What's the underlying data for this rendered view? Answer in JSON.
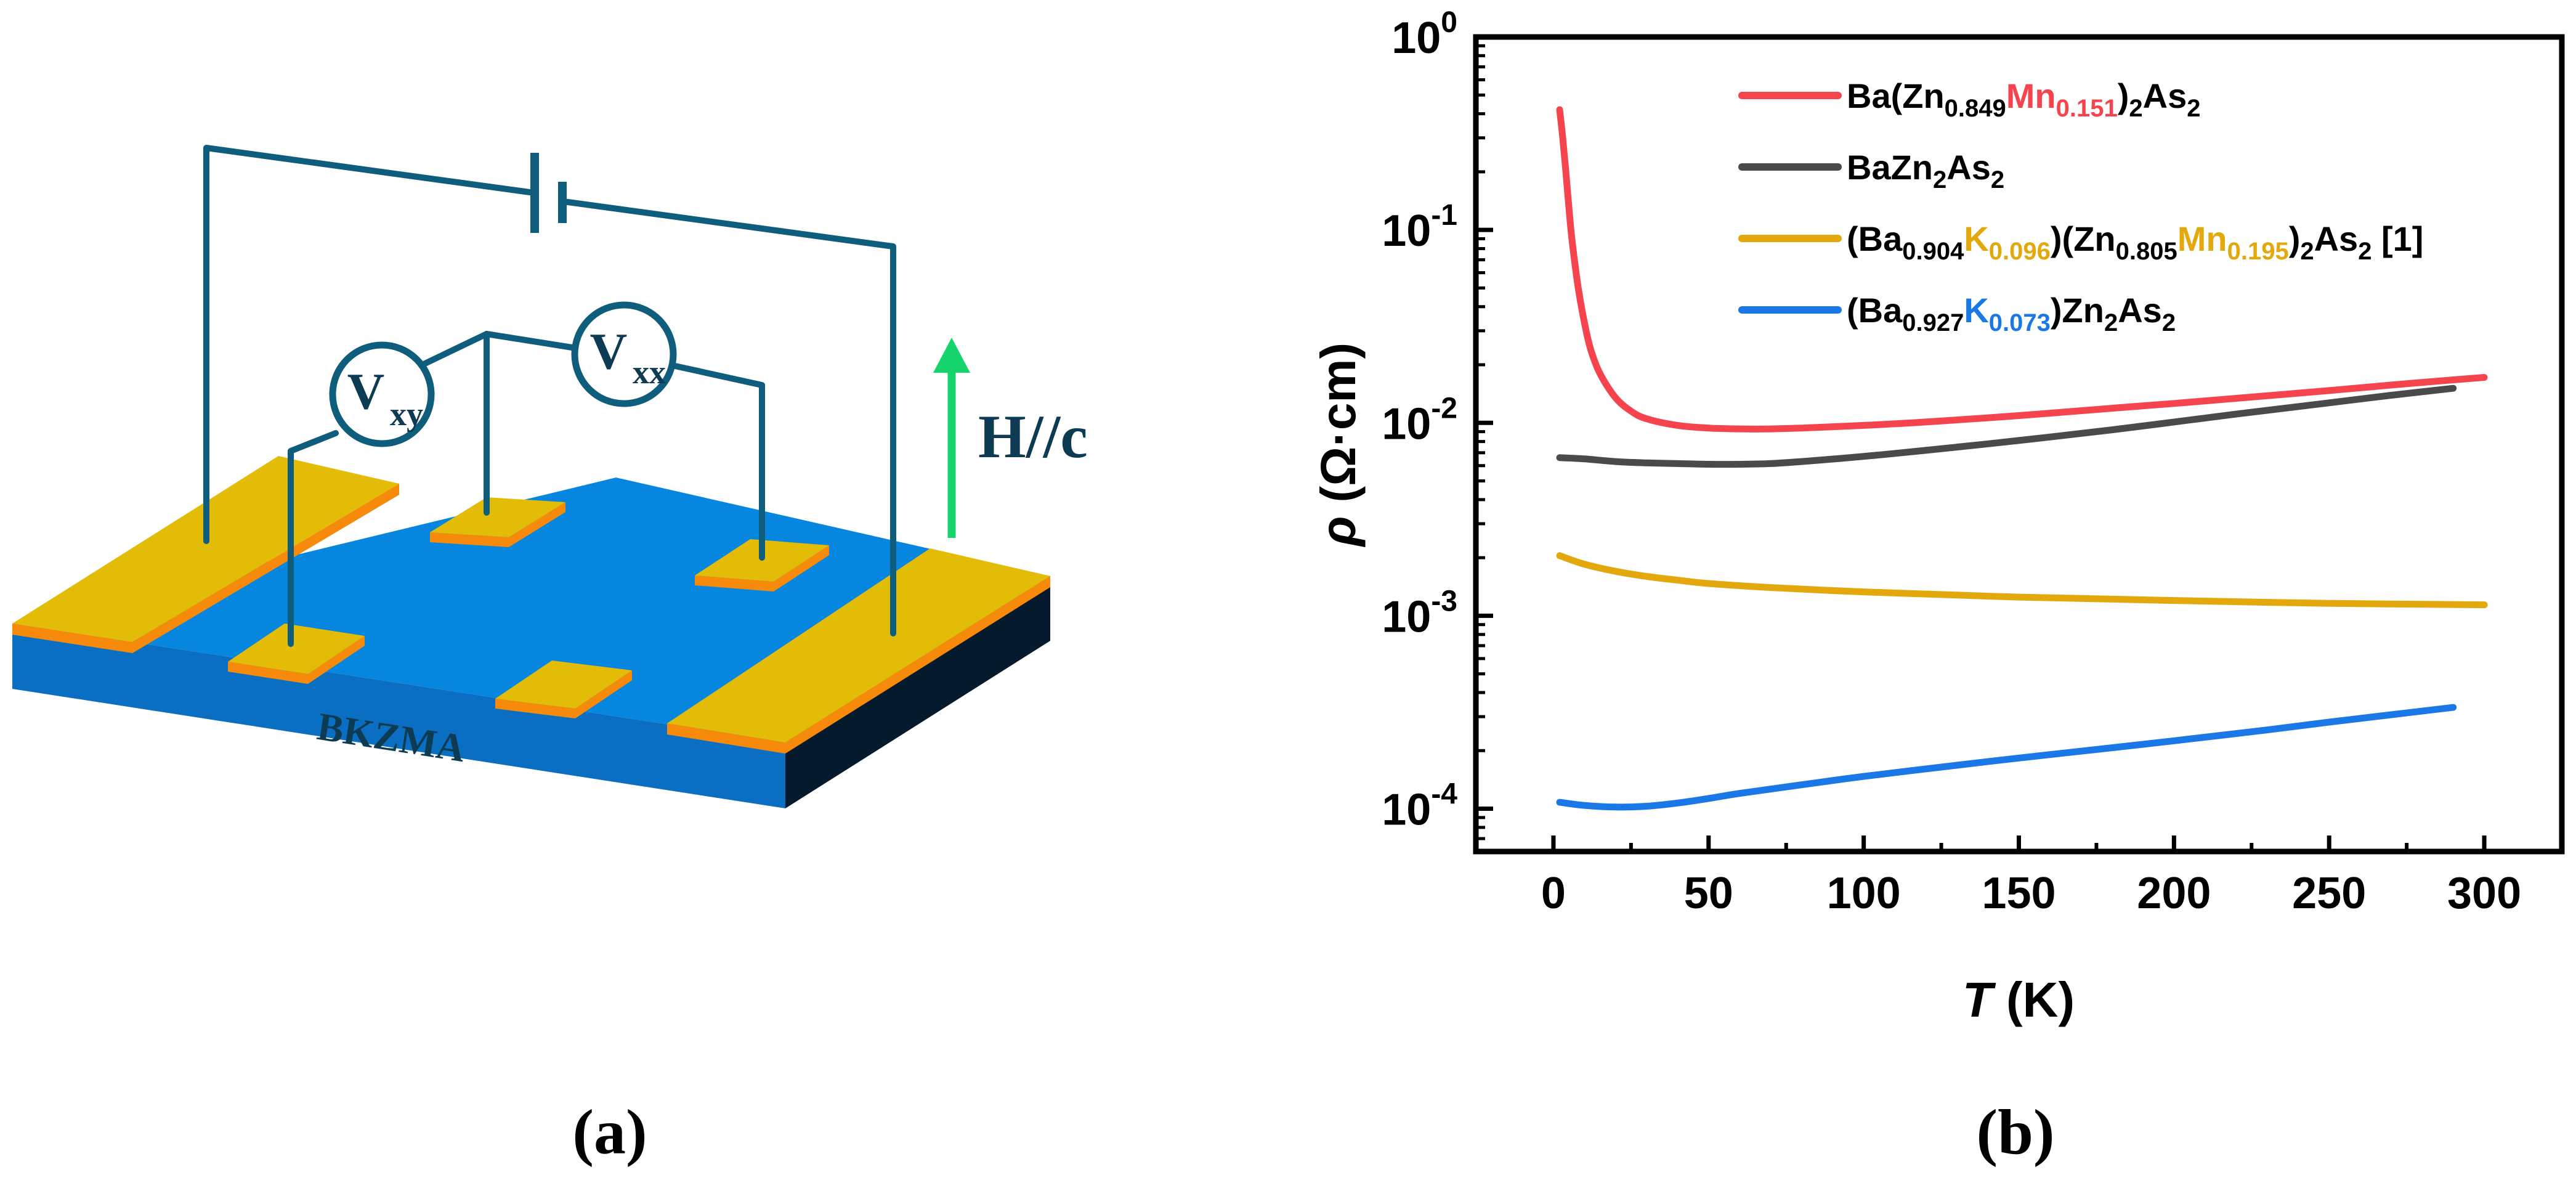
{
  "panel_a": {
    "label": "(a)",
    "sample_label": "BKZMA",
    "field_label": "H//c",
    "vxy": {
      "main": "V",
      "sub": "xy"
    },
    "vxx": {
      "main": "V",
      "sub": "xx"
    },
    "colors": {
      "substrate_top": "#0686de",
      "substrate_front": "#0a6fc2",
      "substrate_side": "#061a2d",
      "contact_top": "#e3bc08",
      "contact_edge": "#f7890b",
      "wire": "#0f5d7d",
      "arrow": "#14d46b",
      "sample_text": "#ffffff"
    }
  },
  "panel_b": {
    "label": "(b)"
  },
  "chart_data": {
    "type": "line",
    "yscale": "log",
    "xlim": [
      -25,
      325
    ],
    "ylim": [
      6e-05,
      1
    ],
    "xticks": [
      0,
      50,
      100,
      150,
      200,
      250,
      300
    ],
    "xtick_labels": [
      "0",
      "50",
      "100",
      "150",
      "200",
      "250",
      "300"
    ],
    "yticks": [
      {
        "value": 1,
        "base": "10",
        "exp": "0"
      },
      {
        "value": 0.1,
        "base": "10",
        "exp": "-1"
      },
      {
        "value": 0.01,
        "base": "10",
        "exp": "-2"
      },
      {
        "value": 0.001,
        "base": "10",
        "exp": "-3"
      },
      {
        "value": 0.0001,
        "base": "10",
        "exp": "-4"
      }
    ],
    "xlabel": {
      "sym": "T",
      "unit": " (K)"
    },
    "ylabel": {
      "sym": "ρ",
      "unit": " (Ω·cm)"
    },
    "series": [
      {
        "name": "Ba(Zn0.849Mn0.151)2As2",
        "color": "#f5444e",
        "legend_parts": [
          {
            "t": "Ba(Zn"
          },
          {
            "t": "0.849",
            "s": "sub"
          },
          {
            "t": "Mn",
            "c": "#f5444e"
          },
          {
            "t": "0.151",
            "s": "sub",
            "c": "#f5444e"
          },
          {
            "t": ")"
          },
          {
            "t": "2",
            "s": "sub"
          },
          {
            "t": "As"
          },
          {
            "t": "2",
            "s": "sub"
          }
        ],
        "x": [
          2,
          3,
          4,
          5,
          6,
          8,
          10,
          12,
          15,
          20,
          25,
          30,
          40,
          50,
          60,
          70,
          80,
          100,
          120,
          150,
          180,
          200,
          220,
          250,
          270,
          290,
          300
        ],
        "y": [
          0.42,
          0.3,
          0.2,
          0.13,
          0.088,
          0.05,
          0.033,
          0.024,
          0.018,
          0.0135,
          0.0115,
          0.0105,
          0.0097,
          0.0094,
          0.0093,
          0.0093,
          0.0094,
          0.0097,
          0.0101,
          0.0109,
          0.0119,
          0.0126,
          0.0134,
          0.0147,
          0.0157,
          0.0167,
          0.0172
        ]
      },
      {
        "name": "BaZn2As2",
        "color": "#4a4a4c",
        "legend_parts": [
          {
            "t": "BaZn"
          },
          {
            "t": "2",
            "s": "sub"
          },
          {
            "t": "As"
          },
          {
            "t": "2",
            "s": "sub"
          }
        ],
        "x": [
          2,
          10,
          20,
          30,
          40,
          50,
          60,
          70,
          80,
          100,
          120,
          150,
          180,
          200,
          220,
          250,
          270,
          290
        ],
        "y": [
          0.0066,
          0.0065,
          0.0063,
          0.0062,
          0.00615,
          0.0061,
          0.0061,
          0.00615,
          0.0063,
          0.0067,
          0.0072,
          0.0081,
          0.0092,
          0.0101,
          0.0111,
          0.0127,
          0.0139,
          0.0151
        ]
      },
      {
        "name": "(Ba0.904K0.096)(Zn0.805Mn0.195)2As2 [1]",
        "color": "#e3a80c",
        "legend_parts": [
          {
            "t": "(Ba"
          },
          {
            "t": "0.904",
            "s": "sub"
          },
          {
            "t": "K",
            "c": "#e3a80c"
          },
          {
            "t": "0.096",
            "s": "sub",
            "c": "#e3a80c"
          },
          {
            "t": ")(Zn"
          },
          {
            "t": "0.805",
            "s": "sub"
          },
          {
            "t": "Mn",
            "c": "#e3a80c"
          },
          {
            "t": "0.195",
            "s": "sub",
            "c": "#e3a80c"
          },
          {
            "t": ")"
          },
          {
            "t": "2",
            "s": "sub"
          },
          {
            "t": "As"
          },
          {
            "t": "2",
            "s": "sub"
          },
          {
            "t": " [1]"
          }
        ],
        "x": [
          2,
          10,
          20,
          30,
          40,
          50,
          70,
          100,
          130,
          150,
          180,
          200,
          250,
          300
        ],
        "y": [
          0.00205,
          0.00185,
          0.0017,
          0.0016,
          0.00153,
          0.00147,
          0.0014,
          0.00133,
          0.00128,
          0.00125,
          0.00122,
          0.0012,
          0.00116,
          0.00114
        ]
      },
      {
        "name": "(Ba0.927K0.073)Zn2As2",
        "color": "#1a78e6",
        "legend_parts": [
          {
            "t": "(Ba"
          },
          {
            "t": "0.927",
            "s": "sub"
          },
          {
            "t": "K",
            "c": "#1a78e6"
          },
          {
            "t": "0.073",
            "s": "sub",
            "c": "#1a78e6"
          },
          {
            "t": ")Zn"
          },
          {
            "t": "2",
            "s": "sub"
          },
          {
            "t": "As"
          },
          {
            "t": "2",
            "s": "sub"
          }
        ],
        "x": [
          2,
          10,
          20,
          30,
          40,
          50,
          60,
          80,
          100,
          130,
          150,
          180,
          200,
          230,
          250,
          270,
          290
        ],
        "y": [
          0.000108,
          0.000104,
          0.000102,
          0.000103,
          0.000107,
          0.000113,
          0.00012,
          0.000133,
          0.000147,
          0.000168,
          0.000183,
          0.000207,
          0.000225,
          0.000256,
          0.000281,
          0.000307,
          0.000335
        ]
      }
    ]
  }
}
